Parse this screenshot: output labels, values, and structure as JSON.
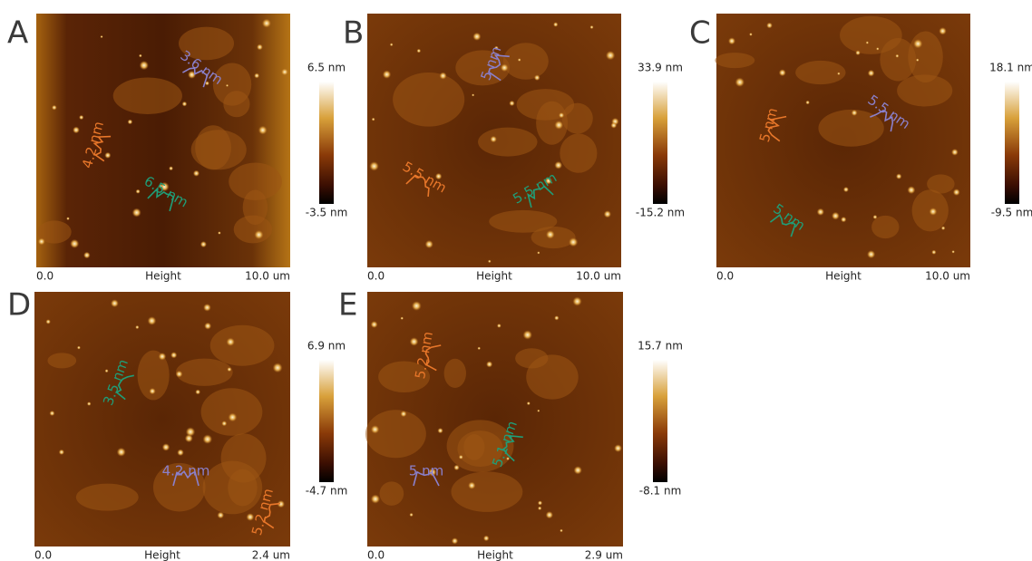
{
  "panels": [
    {
      "label": "A",
      "scale_max": "6.5 nm",
      "scale_min": "-3.5 nm",
      "axis_start": "0.0",
      "axis_title": "Height",
      "axis_end": "10.0 um",
      "annotations": [
        {
          "text": "3.6 nm",
          "color": "#8a80cc"
        },
        {
          "text": "4.2 nm",
          "color": "#e8772a"
        },
        {
          "text": "6.5 nm",
          "color": "#1f9e78"
        }
      ]
    },
    {
      "label": "B",
      "scale_max": "33.9 nm",
      "scale_min": "-15.2 nm",
      "axis_start": "0.0",
      "axis_title": "Height",
      "axis_end": "10.0 um",
      "annotations": [
        {
          "text": "5 nm",
          "color": "#8a80cc"
        },
        {
          "text": "5.5 nm",
          "color": "#e8772a"
        },
        {
          "text": "5.5 nm",
          "color": "#1f9e78"
        }
      ]
    },
    {
      "label": "C",
      "scale_max": "18.1 nm",
      "scale_min": "-9.5 nm",
      "axis_start": "0.0",
      "axis_title": "Height",
      "axis_end": "10.0 um",
      "annotations": [
        {
          "text": "5.5 nm",
          "color": "#8a80cc"
        },
        {
          "text": "5 nm",
          "color": "#e8772a"
        },
        {
          "text": "5 nm",
          "color": "#1f9e78"
        }
      ]
    },
    {
      "label": "D",
      "scale_max": "6.9 nm",
      "scale_min": "-4.7 nm",
      "axis_start": "0.0",
      "axis_title": "Height",
      "axis_end": "2.4 um",
      "annotations": [
        {
          "text": "3.5 nm",
          "color": "#1f9e78"
        },
        {
          "text": "4.2 nm",
          "color": "#8a80cc"
        },
        {
          "text": "5.2 nm",
          "color": "#e8772a"
        }
      ]
    },
    {
      "label": "E",
      "scale_max": "15.7 nm",
      "scale_min": "-8.1 nm",
      "axis_start": "0.0",
      "axis_title": "Height",
      "axis_end": "2.9 um",
      "annotations": [
        {
          "text": "5.2 nm",
          "color": "#e8772a"
        },
        {
          "text": "5.1 nm",
          "color": "#1f9e78"
        },
        {
          "text": "5 nm",
          "color": "#8a80cc"
        }
      ]
    }
  ]
}
